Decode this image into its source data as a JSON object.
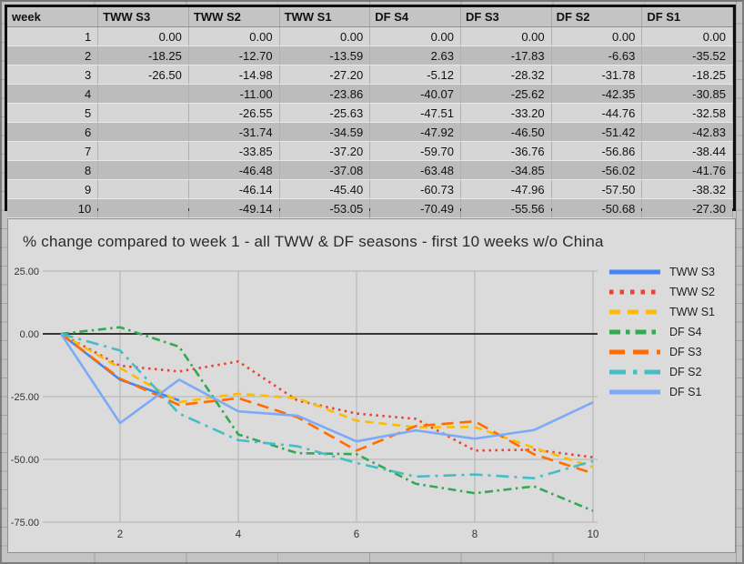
{
  "table": {
    "headers": [
      "week",
      "TWW S3",
      "TWW S2",
      "TWW S1",
      "DF S4",
      "DF S3",
      "DF S2",
      "DF S1"
    ],
    "rows": [
      [
        "1",
        "0.00",
        "0.00",
        "0.00",
        "0.00",
        "0.00",
        "0.00",
        "0.00"
      ],
      [
        "2",
        "-18.25",
        "-12.70",
        "-13.59",
        "2.63",
        "-17.83",
        "-6.63",
        "-35.52"
      ],
      [
        "3",
        "-26.50",
        "-14.98",
        "-27.20",
        "-5.12",
        "-28.32",
        "-31.78",
        "-18.25"
      ],
      [
        "4",
        "",
        "-11.00",
        "-23.86",
        "-40.07",
        "-25.62",
        "-42.35",
        "-30.85"
      ],
      [
        "5",
        "",
        "-26.55",
        "-25.63",
        "-47.51",
        "-33.20",
        "-44.76",
        "-32.58"
      ],
      [
        "6",
        "",
        "-31.74",
        "-34.59",
        "-47.92",
        "-46.50",
        "-51.42",
        "-42.83"
      ],
      [
        "7",
        "",
        "-33.85",
        "-37.20",
        "-59.70",
        "-36.76",
        "-56.86",
        "-38.44"
      ],
      [
        "8",
        "",
        "-46.48",
        "-37.08",
        "-63.48",
        "-34.85",
        "-56.02",
        "-41.76"
      ],
      [
        "9",
        "",
        "-46.14",
        "-45.40",
        "-60.73",
        "-47.96",
        "-57.50",
        "-38.32"
      ],
      [
        "10",
        "",
        "-49.14",
        "-53.05",
        "-70.49",
        "-55.56",
        "-50.68",
        "-27.30"
      ]
    ]
  },
  "chart": {
    "title": "% change compared to week 1 - all TWW & DF seasons - first 10 weeks w/o China"
  },
  "chart_data": {
    "type": "line",
    "title": "% change compared to week 1 - all TWW & DF seasons - first 10 weeks w/o China",
    "xlabel": "",
    "ylabel": "",
    "x": [
      1,
      2,
      3,
      4,
      5,
      6,
      7,
      8,
      9,
      10
    ],
    "xticks": [
      2,
      4,
      6,
      8,
      10
    ],
    "xtick_labels": [
      "2",
      "4",
      "6",
      "8",
      "10"
    ],
    "ylim": [
      -75,
      25
    ],
    "yticks": [
      25,
      0,
      -25,
      -50,
      -75
    ],
    "ytick_labels": [
      "25.00",
      "0.00",
      "-25.00",
      "-50.00",
      "-75.00"
    ],
    "grid": true,
    "legend_position": "right",
    "series": [
      {
        "name": "TWW S3",
        "color": "#4285F4",
        "style": "solid",
        "values": [
          0,
          -18.25,
          -26.5,
          null,
          null,
          null,
          null,
          null,
          null,
          null
        ]
      },
      {
        "name": "TWW S2",
        "color": "#EA4335",
        "style": "dotted",
        "values": [
          0,
          -12.7,
          -14.98,
          -11.0,
          -26.55,
          -31.74,
          -33.85,
          -46.48,
          -46.14,
          -49.14
        ]
      },
      {
        "name": "TWW S1",
        "color": "#FBBC04",
        "style": "dashed",
        "values": [
          0,
          -13.59,
          -27.2,
          -23.86,
          -25.63,
          -34.59,
          -37.2,
          -37.08,
          -45.4,
          -53.05
        ]
      },
      {
        "name": "DF S4",
        "color": "#34A853",
        "style": "dashdot",
        "values": [
          0,
          2.63,
          -5.12,
          -40.07,
          -47.51,
          -47.92,
          -59.7,
          -63.48,
          -60.73,
          -70.49
        ]
      },
      {
        "name": "DF S3",
        "color": "#FF6D01",
        "style": "longdash",
        "values": [
          0,
          -17.83,
          -28.32,
          -25.62,
          -33.2,
          -46.5,
          -36.76,
          -34.85,
          -47.96,
          -55.56
        ]
      },
      {
        "name": "DF S2",
        "color": "#46BDC6",
        "style": "longdashdot",
        "values": [
          0,
          -6.63,
          -31.78,
          -42.35,
          -44.76,
          -51.42,
          -56.86,
          -56.02,
          -57.5,
          -50.68
        ]
      },
      {
        "name": "DF S1",
        "color": "#7BAAF7",
        "style": "solid",
        "values": [
          0,
          -35.52,
          -18.25,
          -30.85,
          -32.58,
          -42.83,
          -38.44,
          -41.76,
          -38.32,
          -27.3
        ]
      }
    ],
    "colors": {
      "grid": "#b2b2b2",
      "zero_axis": "#000000",
      "tick_text": "#333333"
    }
  }
}
